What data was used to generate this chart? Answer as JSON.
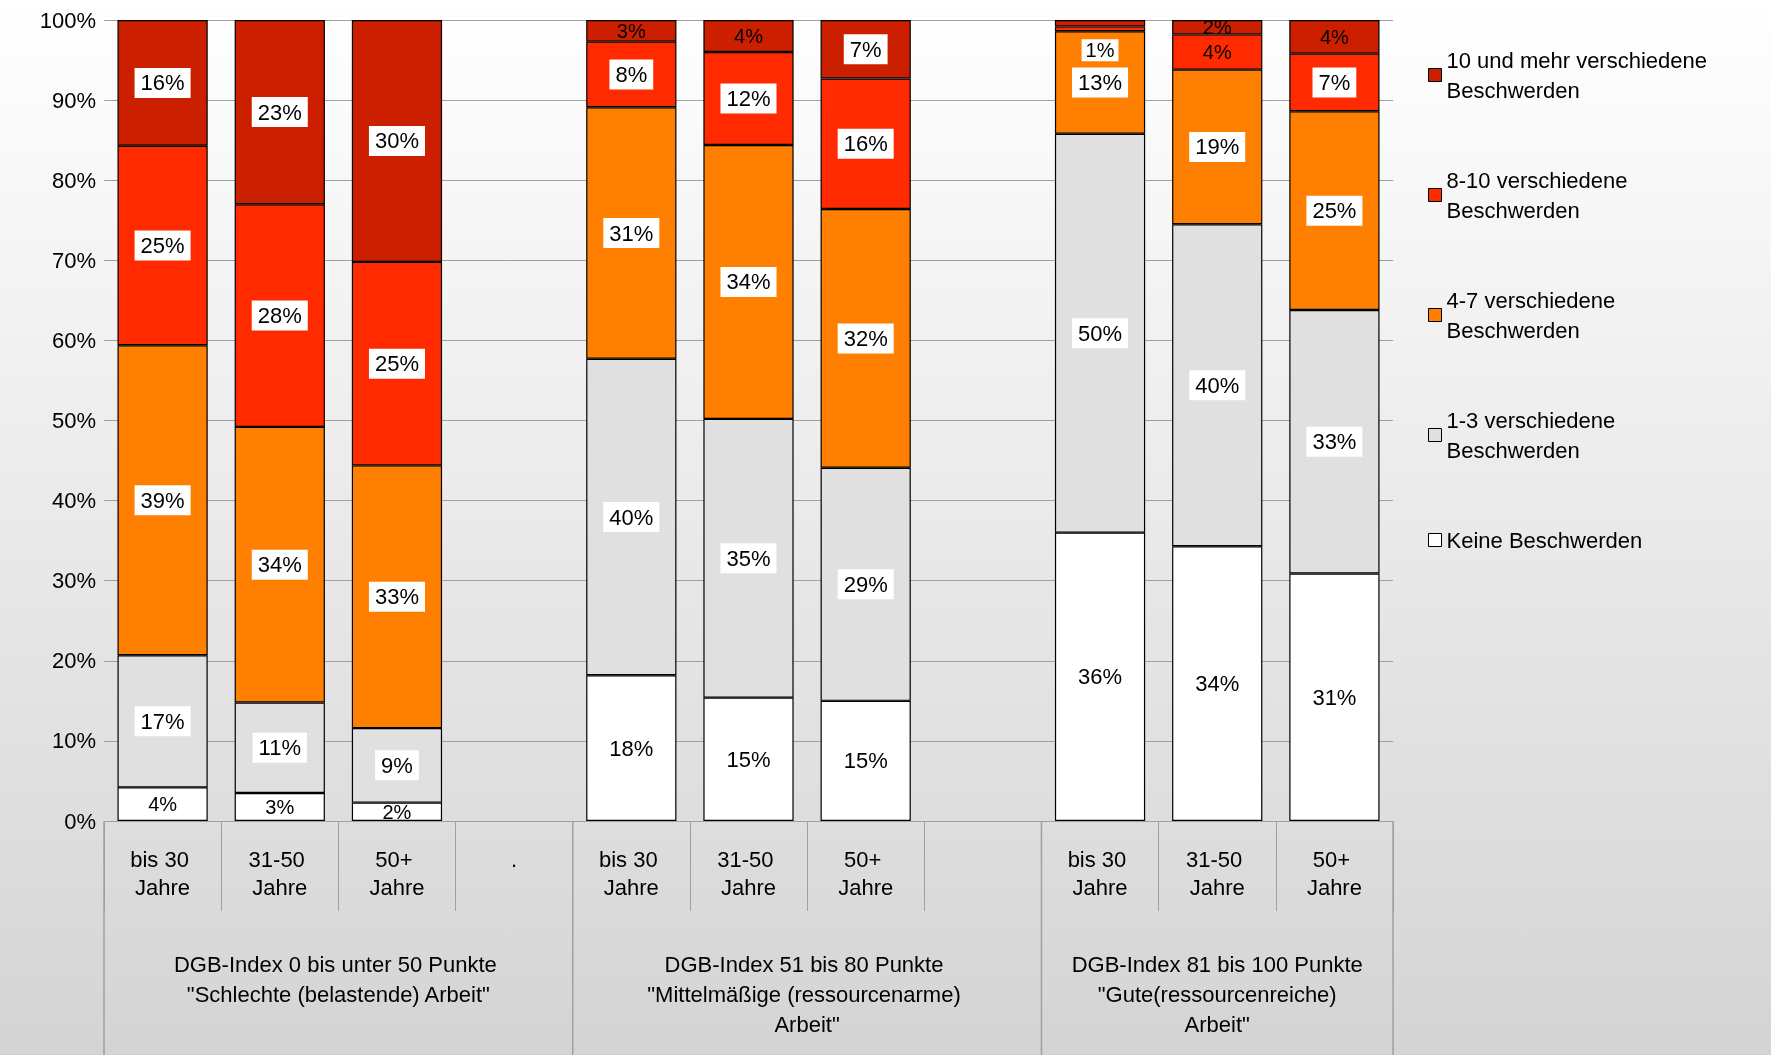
{
  "chart_data": {
    "type": "bar",
    "stacked": true,
    "categories": [
      "bis 30 Jahre",
      "31-50 Jahre",
      "50+ Jahre",
      ".",
      "bis 30 Jahre",
      "31-50 Jahre",
      "50+ Jahre",
      null,
      "bis 30 Jahre",
      "31-50 Jahre",
      "50+ Jahre"
    ],
    "series": [
      {
        "name": "Keine Beschwerden",
        "color": "#ffffff",
        "values": [
          4.2,
          3.5,
          2.3,
          null,
          18.2,
          15.4,
          15.0,
          null,
          36.0,
          34.3,
          30.9
        ],
        "value_labels": [
          "4%",
          "3%",
          "2%",
          null,
          "18%",
          "15%",
          "15%",
          null,
          "36%",
          "34%",
          "31%"
        ]
      },
      {
        "name": "1-3 verschiedene Beschwerden",
        "color": "#e0e0e0",
        "values": [
          16.5,
          11.3,
          9.3,
          null,
          39.5,
          34.8,
          29.1,
          null,
          49.8,
          40.2,
          32.9
        ],
        "value_labels": [
          "17%",
          "11%",
          "9%",
          null,
          "40%",
          "35%",
          "29%",
          null,
          "50%",
          "40%",
          "33%"
        ]
      },
      {
        "name": "4-7 verschiedene Beschwerden",
        "color": "#ff7f00",
        "values": [
          38.7,
          34.4,
          32.8,
          null,
          31.4,
          34.2,
          32.3,
          null,
          12.8,
          19.3,
          24.8
        ],
        "value_labels": [
          "39%",
          "34%",
          "33%",
          null,
          "31%",
          "34%",
          "32%",
          null,
          "13%",
          "19%",
          "25%"
        ]
      },
      {
        "name": "8-10 verschiedene Beschwerden",
        "color": "#ff2a00",
        "values": [
          24.9,
          27.8,
          25.4,
          null,
          8.2,
          11.6,
          16.3,
          null,
          0.6,
          4.4,
          7.2
        ],
        "value_labels": [
          "25%",
          "28%",
          "25%",
          null,
          "8%",
          "12%",
          "16%",
          null,
          null,
          "4%",
          "7%"
        ]
      },
      {
        "name": "10 und mehr verschiedene Beschwerden",
        "color": "#cc1f00",
        "values": [
          15.7,
          23.0,
          30.2,
          null,
          2.7,
          4.0,
          7.3,
          null,
          0.8,
          1.8,
          4.2
        ],
        "value_labels": [
          "16%",
          "23%",
          "30%",
          null,
          "3%",
          "4%",
          "7%",
          null,
          "1%",
          "2%",
          "4%"
        ]
      }
    ],
    "ylim": [
      0,
      100
    ],
    "yticks": [
      {
        "value": 0,
        "label": "0%"
      },
      {
        "value": 10,
        "label": "10%"
      },
      {
        "value": 20,
        "label": "20%"
      },
      {
        "value": 30,
        "label": "30%"
      },
      {
        "value": 40,
        "label": "40%"
      },
      {
        "value": 50,
        "label": "50%"
      },
      {
        "value": 60,
        "label": "60%"
      },
      {
        "value": 70,
        "label": "70%"
      },
      {
        "value": 80,
        "label": "80%"
      },
      {
        "value": 90,
        "label": "90%"
      },
      {
        "value": 100,
        "label": "100%"
      }
    ],
    "grid": "y",
    "legend": "right",
    "annotations": [
      "DGB-Index 0 bis unter 50 Punkte \"Schlechte (belastende) Arbeit\"",
      "DGB-Index 51 bis 80 Punkte \"Mittelmäßige (ressourcenarme) Arbeit\"",
      "DGB-Index 81 bis 100 Punkte \"Gute(ressourcenreiche) Arbeit\""
    ]
  }
}
